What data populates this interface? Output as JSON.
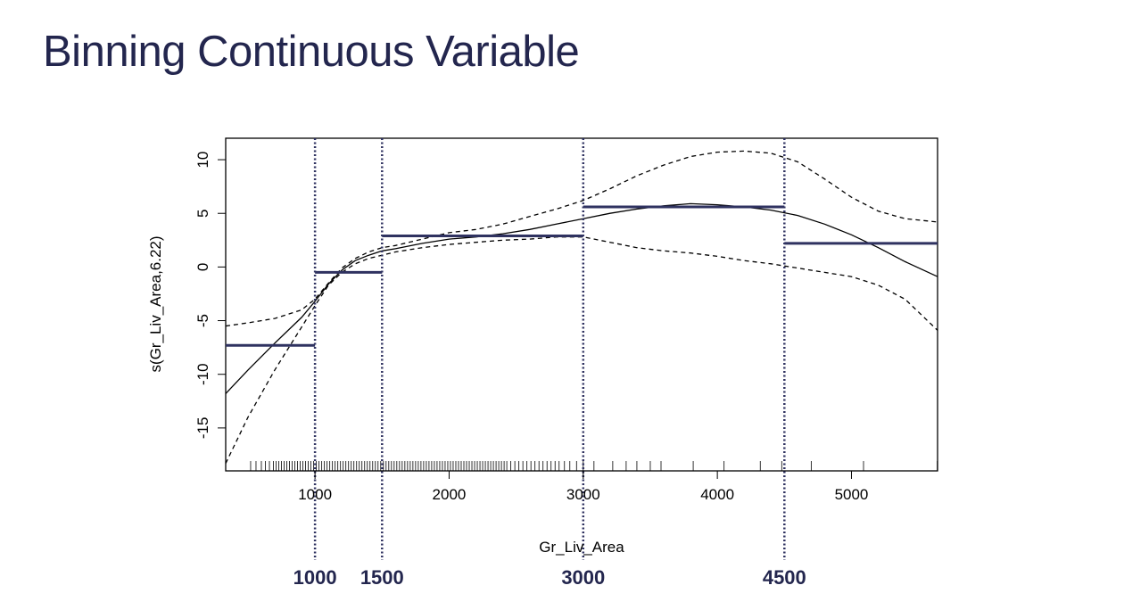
{
  "slide": {
    "title": "Binning Continuous Variable"
  },
  "colors": {
    "title": "#23264e",
    "bin_line": "#2f3260",
    "cutoff_line": "#2f3260",
    "curve": "#000000",
    "frame": "#000000"
  },
  "chart_data": {
    "type": "line",
    "xlabel": "Gr_Liv_Area",
    "ylabel": "s(Gr_Liv_Area,6.22)",
    "xlim": [
      334,
      5642
    ],
    "ylim": [
      -19,
      12
    ],
    "x_ticks": [
      1000,
      2000,
      3000,
      4000,
      5000
    ],
    "y_ticks": [
      10,
      5,
      0,
      -5,
      -10,
      -15
    ],
    "grid": false,
    "legend": "none",
    "series": [
      {
        "style": "solid",
        "x": [
          334,
          500,
          700,
          900,
          1000,
          1100,
          1200,
          1300,
          1400,
          1500,
          1600,
          1800,
          2000,
          2200,
          2400,
          2600,
          2800,
          3000,
          3200,
          3400,
          3600,
          3800,
          4000,
          4200,
          4400,
          4600,
          4800,
          5000,
          5200,
          5400,
          5642
        ],
        "y": [
          -11.8,
          -9.6,
          -7.1,
          -4.7,
          -3.2,
          -1.6,
          -0.3,
          0.6,
          1.1,
          1.5,
          1.7,
          2.2,
          2.6,
          2.8,
          3.1,
          3.5,
          4.0,
          4.5,
          5.0,
          5.4,
          5.7,
          5.9,
          5.8,
          5.6,
          5.3,
          4.8,
          4.0,
          3.0,
          1.8,
          0.5,
          -0.9
        ]
      },
      {
        "style": "dashed",
        "x": [
          334,
          500,
          700,
          900,
          1000,
          1100,
          1200,
          1300,
          1400,
          1500,
          1600,
          1800,
          2000,
          2200,
          2400,
          2600,
          2800,
          3000,
          3200,
          3400,
          3600,
          3800,
          4000,
          4200,
          4400,
          4600,
          4800,
          5000,
          5200,
          5400,
          5642
        ],
        "y": [
          -5.5,
          -5.2,
          -4.8,
          -4.0,
          -3.0,
          -1.5,
          -0.1,
          0.8,
          1.4,
          1.8,
          2.0,
          2.6,
          3.2,
          3.5,
          4.0,
          4.7,
          5.4,
          6.2,
          7.3,
          8.5,
          9.5,
          10.3,
          10.7,
          10.8,
          10.6,
          9.8,
          8.2,
          6.5,
          5.2,
          4.5,
          4.2
        ]
      },
      {
        "style": "dashed",
        "x": [
          334,
          500,
          700,
          900,
          1000,
          1100,
          1200,
          1300,
          1400,
          1500,
          1600,
          1800,
          2000,
          2200,
          2400,
          2600,
          2800,
          3000,
          3200,
          3400,
          3600,
          3800,
          4000,
          4200,
          4400,
          4600,
          4800,
          5000,
          5200,
          5400,
          5642
        ],
        "y": [
          -18.3,
          -14.0,
          -9.6,
          -5.6,
          -3.6,
          -1.7,
          -0.5,
          0.3,
          0.8,
          1.1,
          1.4,
          1.8,
          2.1,
          2.3,
          2.5,
          2.6,
          2.8,
          2.8,
          2.3,
          1.8,
          1.5,
          1.3,
          1.0,
          0.6,
          0.3,
          -0.1,
          -0.5,
          -0.9,
          -1.7,
          -3.0,
          -5.9
        ]
      }
    ],
    "bins": [
      {
        "x0": 334,
        "x1": 1000,
        "value": -7.3
      },
      {
        "x0": 1000,
        "x1": 1500,
        "value": -0.5
      },
      {
        "x0": 1500,
        "x1": 3000,
        "value": 2.9
      },
      {
        "x0": 3000,
        "x1": 4500,
        "value": 5.6
      },
      {
        "x0": 4500,
        "x1": 5642,
        "value": 2.2
      }
    ],
    "cutoffs": [
      {
        "value": 1000,
        "label": "1000"
      },
      {
        "value": 1500,
        "label": "1500"
      },
      {
        "value": 3000,
        "label": "3000"
      },
      {
        "value": 4500,
        "label": "4500"
      }
    ],
    "rug": [
      520,
      560,
      600,
      630,
      660,
      690,
      710,
      730,
      750,
      770,
      790,
      810,
      830,
      850,
      870,
      890,
      910,
      930,
      950,
      970,
      990,
      1010,
      1030,
      1050,
      1070,
      1090,
      1110,
      1130,
      1150,
      1170,
      1190,
      1210,
      1230,
      1250,
      1270,
      1290,
      1310,
      1330,
      1350,
      1370,
      1390,
      1410,
      1430,
      1450,
      1470,
      1490,
      1510,
      1530,
      1550,
      1570,
      1590,
      1610,
      1630,
      1650,
      1670,
      1690,
      1710,
      1730,
      1750,
      1770,
      1790,
      1810,
      1830,
      1850,
      1870,
      1890,
      1910,
      1930,
      1950,
      1970,
      1990,
      2010,
      2030,
      2050,
      2070,
      2090,
      2110,
      2130,
      2150,
      2170,
      2190,
      2210,
      2230,
      2250,
      2270,
      2290,
      2310,
      2330,
      2350,
      2370,
      2390,
      2410,
      2430,
      2460,
      2490,
      2520,
      2550,
      2580,
      2610,
      2640,
      2670,
      2700,
      2730,
      2760,
      2790,
      2820,
      2860,
      2900,
      2950,
      3000,
      3080,
      3220,
      3320,
      3400,
      3500,
      3580,
      3820,
      4050,
      4320,
      4480,
      4700,
      5090,
      5640
    ]
  }
}
